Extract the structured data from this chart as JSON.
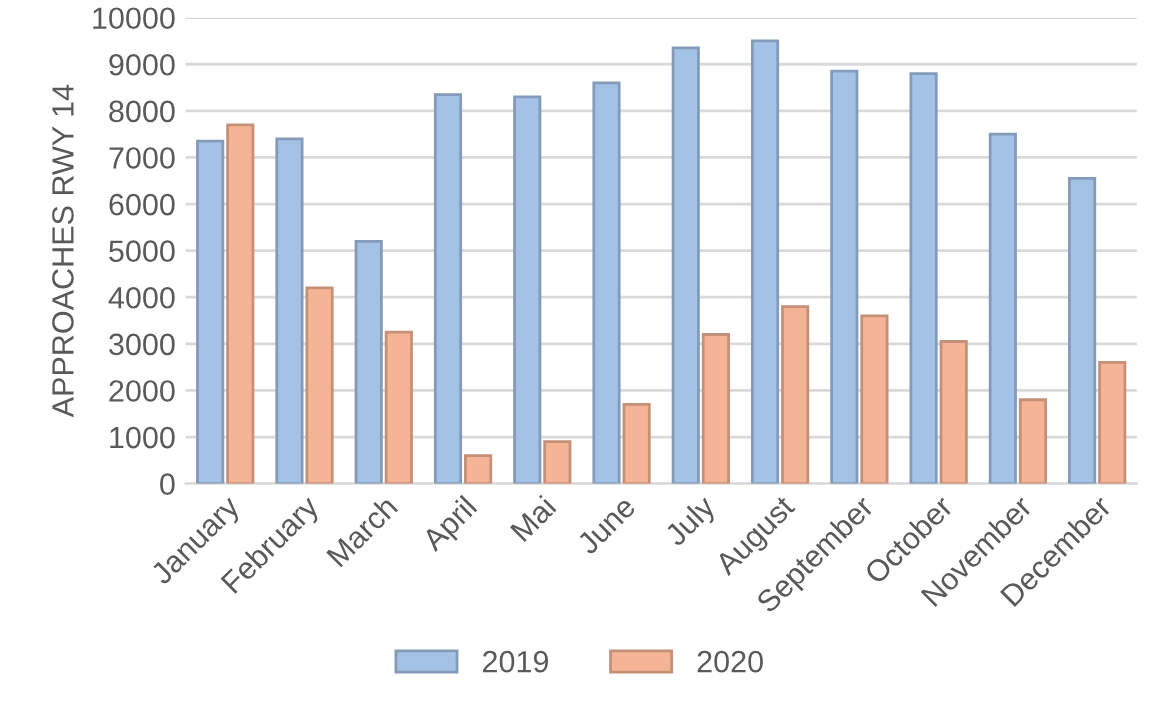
{
  "chart_data": {
    "type": "bar",
    "ylabel": "APPROACHES RWY 14",
    "categories": [
      "January",
      "February",
      "March",
      "April",
      "Mai",
      "June",
      "July",
      "August",
      "September",
      "October",
      "November",
      "December"
    ],
    "series": [
      {
        "name": "2019",
        "color": "#a4c2e6",
        "values": [
          7350,
          7400,
          5200,
          8350,
          8300,
          8600,
          9350,
          9500,
          8850,
          8800,
          7500,
          6550
        ]
      },
      {
        "name": "2020",
        "color": "#f5b496",
        "values": [
          7700,
          4200,
          3250,
          600,
          900,
          1700,
          3200,
          3800,
          3600,
          3050,
          1800,
          2600
        ]
      }
    ],
    "ylim": [
      0,
      10000
    ],
    "yticks": [
      0,
      1000,
      2000,
      3000,
      4000,
      5000,
      6000,
      7000,
      8000,
      9000,
      10000
    ],
    "grid": "y",
    "legend": "bottom"
  }
}
